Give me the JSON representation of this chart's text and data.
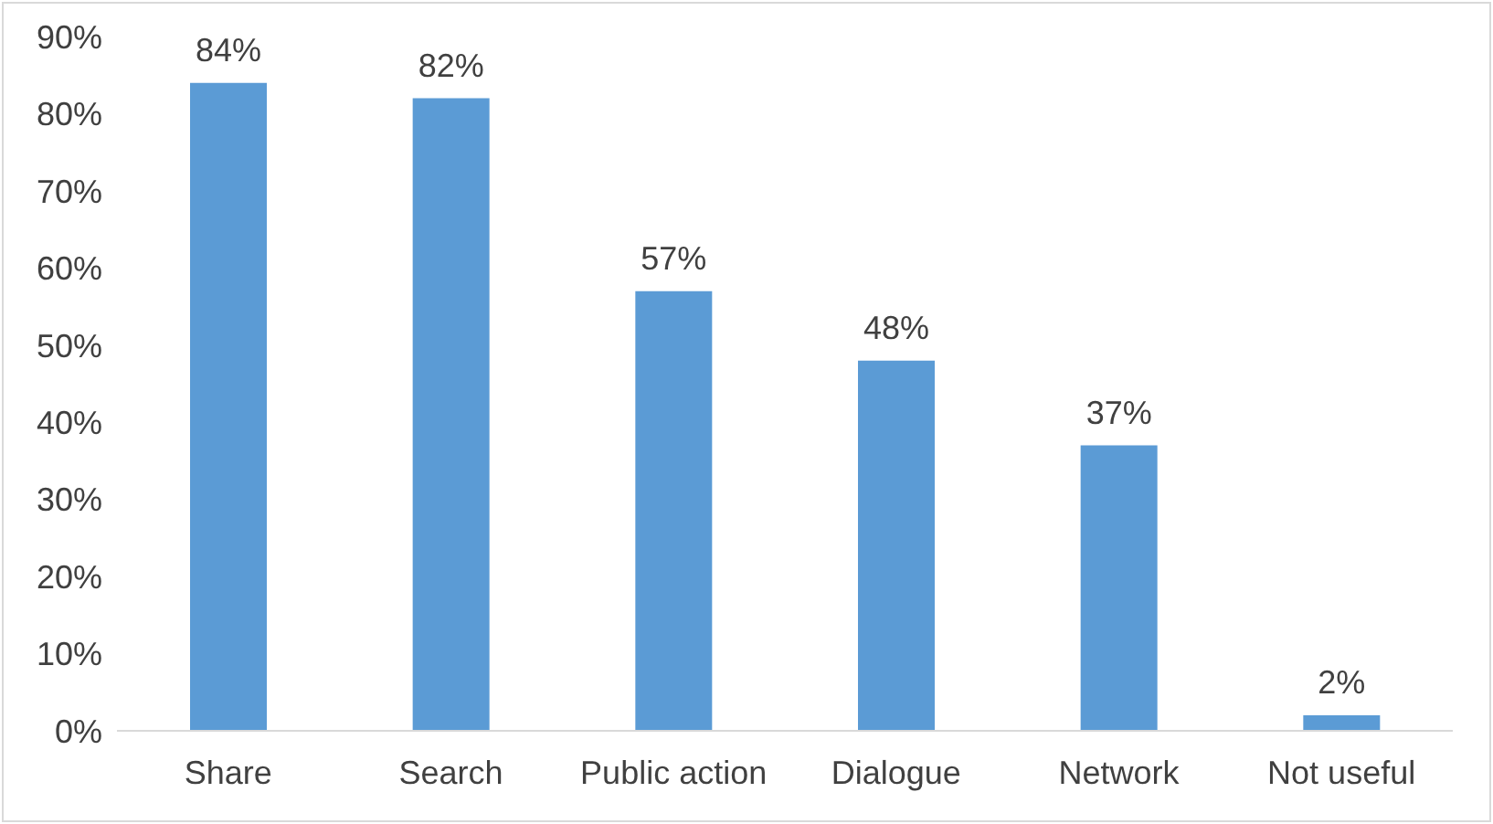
{
  "chart_data": {
    "type": "bar",
    "categories": [
      "Share",
      "Search",
      "Public action",
      "Dialogue",
      "Network",
      "Not useful"
    ],
    "values": [
      84,
      82,
      57,
      48,
      37,
      2
    ],
    "value_labels": [
      "84%",
      "82%",
      "57%",
      "48%",
      "37%",
      "2%"
    ],
    "color": "#5b9bd5",
    "ylim": [
      0,
      90
    ],
    "yticks": [
      {
        "value": 0,
        "label": "0%"
      },
      {
        "value": 10,
        "label": "10%"
      },
      {
        "value": 20,
        "label": "20%"
      },
      {
        "value": 30,
        "label": "30%"
      },
      {
        "value": 40,
        "label": "40%"
      },
      {
        "value": 50,
        "label": "50%"
      },
      {
        "value": 60,
        "label": "60%"
      },
      {
        "value": 70,
        "label": "70%"
      },
      {
        "value": 80,
        "label": "80%"
      },
      {
        "value": 90,
        "label": "90%"
      }
    ],
    "grid": false,
    "legend": false
  }
}
